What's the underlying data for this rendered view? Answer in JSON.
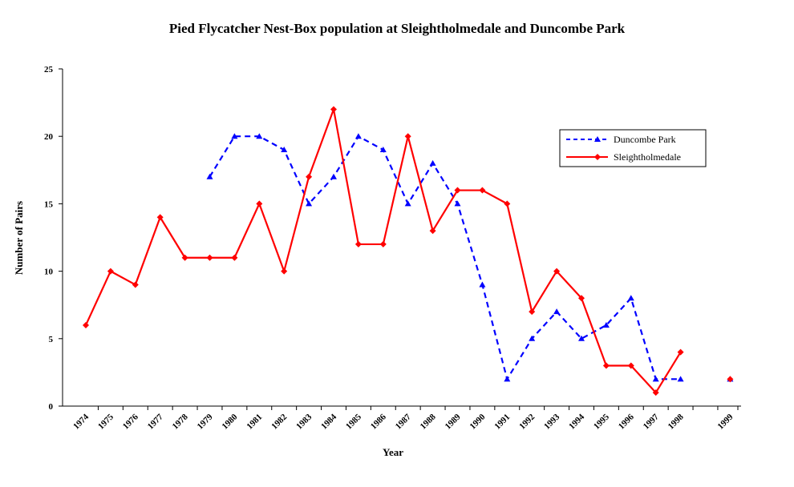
{
  "chart_data": {
    "type": "line",
    "title": "Pied Flycatcher Nest-Box population at Sleightholmedale and Duncombe Park",
    "xlabel": "Year",
    "ylabel": "Number of Pairs",
    "categories": [
      "1974",
      "1975",
      "1976",
      "1977",
      "1978",
      "1979",
      "1980",
      "1981",
      "1982",
      "1983",
      "1984",
      "1985",
      "1986",
      "1987",
      "1988",
      "1989",
      "1990",
      "1991",
      "1992",
      "1993",
      "1994",
      "1995",
      "1996",
      "1997",
      "1998",
      "",
      "1999"
    ],
    "ylim": [
      0,
      25
    ],
    "yticks": [
      0,
      5,
      10,
      15,
      20,
      25
    ],
    "grid": false,
    "legend_position": "right",
    "series": [
      {
        "name": "Duncombe Park",
        "color": "#0000ff",
        "line_style": "dashed",
        "marker": "triangle",
        "values": [
          null,
          null,
          null,
          null,
          null,
          17,
          20,
          20,
          19,
          15,
          17,
          20,
          19,
          15,
          18,
          15,
          9,
          2,
          5,
          7,
          5,
          6,
          8,
          2,
          2,
          null,
          2
        ]
      },
      {
        "name": "Sleightholmedale",
        "color": "#ff0000",
        "line_style": "solid",
        "marker": "diamond",
        "values": [
          6,
          10,
          9,
          14,
          11,
          11,
          11,
          15,
          10,
          17,
          22,
          12,
          12,
          20,
          13,
          16,
          16,
          15,
          7,
          10,
          8,
          3,
          3,
          1,
          4,
          null,
          2
        ]
      }
    ]
  }
}
